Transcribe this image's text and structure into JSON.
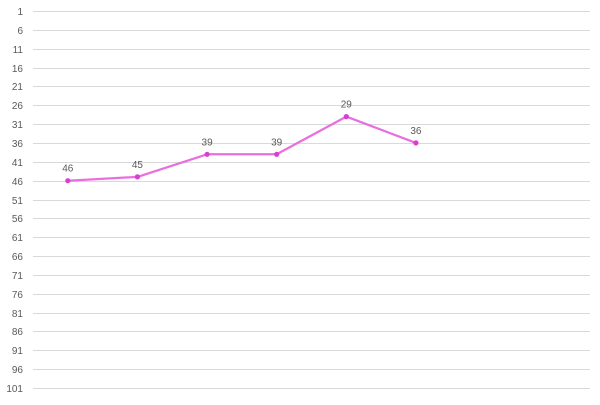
{
  "chart_data": {
    "type": "line",
    "title": "",
    "xlabel": "",
    "ylabel": "",
    "y_axis": {
      "reversed": true,
      "range": [
        1,
        101
      ],
      "ticks": [
        1,
        6,
        11,
        16,
        21,
        26,
        31,
        36,
        41,
        46,
        51,
        56,
        61,
        66,
        71,
        76,
        81,
        86,
        91,
        96,
        101
      ],
      "tick_labels": [
        "1",
        "6",
        "11",
        "16",
        "21",
        "26",
        "31",
        "36",
        "41",
        "46",
        "51",
        "56",
        "61",
        "66",
        "71",
        "76",
        "81",
        "86",
        "91",
        "96",
        "101"
      ]
    },
    "x_axis": {
      "categories": [
        "",
        "",
        "",
        "",
        "",
        "",
        "",
        ""
      ],
      "tick_labels_visible": false
    },
    "grid": true,
    "legend": "none",
    "series": [
      {
        "values": [
          46,
          45,
          39,
          39,
          29,
          36
        ],
        "data_labels": [
          "46",
          "45",
          "39",
          "39",
          "29",
          "36"
        ],
        "color": "#e86fe0",
        "marker_color": "#d63fd0"
      }
    ],
    "colors": {
      "gridline": "#d9d9d9",
      "tick_label": "#595959",
      "data_label": "#595959"
    }
  }
}
